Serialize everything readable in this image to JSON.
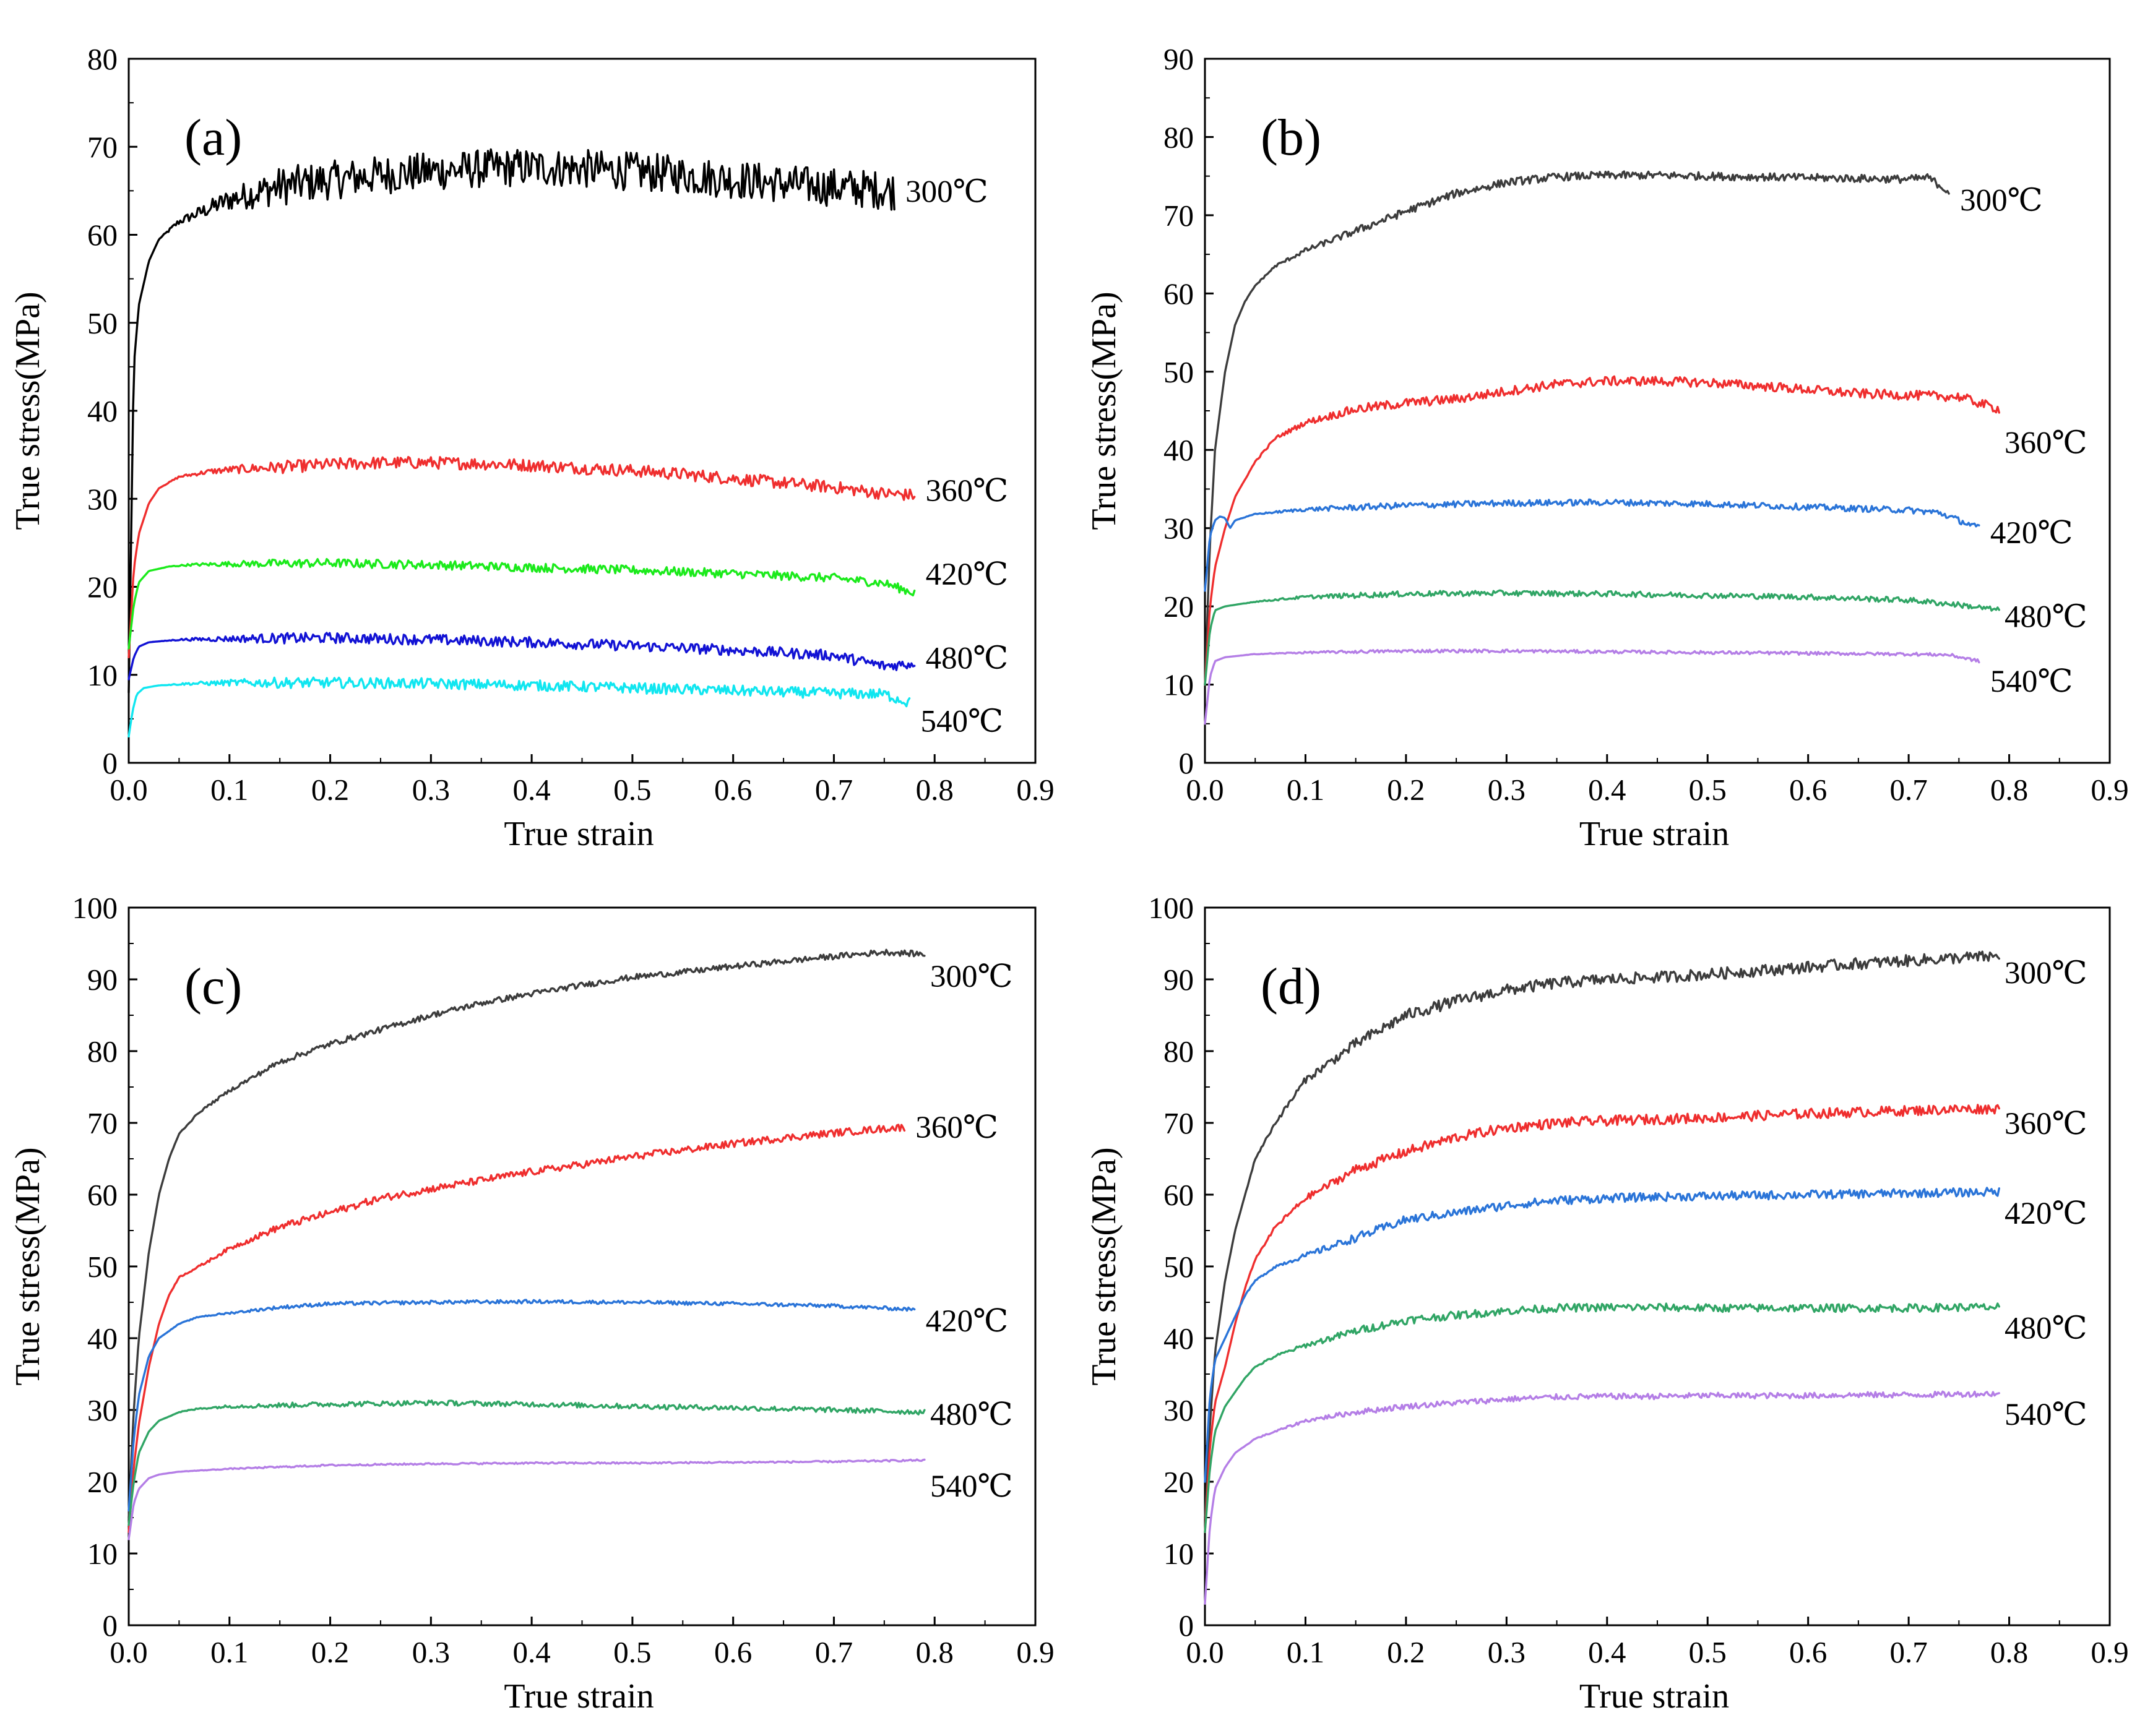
{
  "figure": {
    "colors": {
      "black": "#000000",
      "dark_gray": "#3c3c3c",
      "red": "#ef2e2e",
      "green": "#1bea1b",
      "blue": "#1212d4",
      "cyan": "#10e6f0",
      "mid_blue": "#2a74d8",
      "teal_green": "#30a565",
      "violet": "#b47ee6"
    }
  },
  "chart_data": [
    {
      "type": "line",
      "panel": "(a)",
      "xlabel": "True strain",
      "ylabel": "True stress(MPa)",
      "xlim": [
        0,
        0.9
      ],
      "ylim": [
        0,
        80
      ],
      "xticks": [
        "0.0",
        "0.1",
        "0.2",
        "0.3",
        "0.4",
        "0.5",
        "0.6",
        "0.7",
        "0.8",
        "0.9"
      ],
      "yticks": [
        "0",
        "10",
        "20",
        "30",
        "40",
        "50",
        "60",
        "70",
        "80"
      ],
      "series": [
        {
          "name": "300℃",
          "color": "#000000",
          "noise": 2.2,
          "label_y": 65,
          "x": [
            0,
            0.005,
            0.01,
            0.02,
            0.03,
            0.05,
            0.08,
            0.1,
            0.15,
            0.2,
            0.25,
            0.3,
            0.35,
            0.4,
            0.45,
            0.5,
            0.55,
            0.6,
            0.65,
            0.7,
            0.75,
            0.76
          ],
          "y": [
            8,
            45,
            52,
            57,
            59.5,
            61.5,
            63,
            64,
            65.5,
            66.2,
            66.8,
            67.2,
            67.5,
            67.7,
            67.5,
            67.2,
            66.8,
            66.3,
            65.8,
            65.4,
            65.1,
            65
          ]
        },
        {
          "name": "360℃",
          "color": "#ef2e2e",
          "noise": 0.7,
          "label_y": 31,
          "x": [
            0,
            0.005,
            0.01,
            0.02,
            0.03,
            0.05,
            0.08,
            0.1,
            0.15,
            0.2,
            0.25,
            0.3,
            0.35,
            0.4,
            0.45,
            0.5,
            0.55,
            0.6,
            0.65,
            0.7,
            0.75,
            0.78
          ],
          "y": [
            12,
            22,
            26,
            29.5,
            31.2,
            32.5,
            33.1,
            33.3,
            33.6,
            33.9,
            34.1,
            34.1,
            34,
            33.8,
            33.5,
            33.2,
            32.8,
            32.3,
            31.8,
            31.3,
            30.6,
            30.4
          ]
        },
        {
          "name": "420℃",
          "color": "#1bea1b",
          "noise": 0.5,
          "label_y": 21.5,
          "x": [
            0,
            0.005,
            0.01,
            0.02,
            0.04,
            0.06,
            0.1,
            0.2,
            0.3,
            0.4,
            0.5,
            0.6,
            0.7,
            0.75,
            0.78
          ],
          "y": [
            13,
            18,
            20.5,
            21.8,
            22.3,
            22.5,
            22.6,
            22.7,
            22.5,
            22.2,
            21.9,
            21.5,
            21,
            20.4,
            19.3
          ]
        },
        {
          "name": "480℃",
          "color": "#1212d4",
          "noise": 0.6,
          "label_y": 12,
          "x": [
            0,
            0.005,
            0.01,
            0.02,
            0.05,
            0.1,
            0.2,
            0.3,
            0.4,
            0.5,
            0.6,
            0.7,
            0.75,
            0.78
          ],
          "y": [
            9.5,
            12,
            13.2,
            13.7,
            14,
            14.1,
            14.2,
            14,
            13.7,
            13.3,
            12.8,
            12.2,
            11,
            11.3
          ]
        },
        {
          "name": "540℃",
          "color": "#10e6f0",
          "noise": 0.6,
          "label_y": 4.8,
          "x": [
            0,
            0.004,
            0.008,
            0.015,
            0.03,
            0.06,
            0.1,
            0.2,
            0.3,
            0.4,
            0.5,
            0.6,
            0.7,
            0.75,
            0.775
          ],
          "y": [
            3,
            6,
            7.8,
            8.5,
            8.8,
            9,
            9.1,
            9.1,
            9,
            8.8,
            8.5,
            8.2,
            7.9,
            7.8,
            6.8
          ]
        }
      ]
    },
    {
      "type": "line",
      "panel": "(b)",
      "xlabel": "True strain",
      "ylabel": "True stress(MPa)",
      "xlim": [
        0,
        0.9
      ],
      "ylim": [
        0,
        90
      ],
      "xticks": [
        "0.0",
        "0.1",
        "0.2",
        "0.3",
        "0.4",
        "0.5",
        "0.6",
        "0.7",
        "0.8",
        "0.9"
      ],
      "yticks": [
        "0",
        "10",
        "20",
        "30",
        "40",
        "50",
        "60",
        "70",
        "80",
        "90"
      ],
      "series": [
        {
          "name": "300℃",
          "color": "#3c3c3c",
          "noise": 0.5,
          "label_y": 72,
          "x": [
            0,
            0.005,
            0.01,
            0.02,
            0.03,
            0.04,
            0.05,
            0.07,
            0.1,
            0.15,
            0.2,
            0.25,
            0.3,
            0.35,
            0.4,
            0.45,
            0.5,
            0.55,
            0.6,
            0.65,
            0.7,
            0.72,
            0.74
          ],
          "y": [
            10,
            28,
            40,
            50,
            56,
            59,
            61,
            63.5,
            65.5,
            68,
            70.5,
            72.8,
            74.2,
            74.9,
            75.1,
            75.1,
            75,
            74.9,
            74.8,
            74.7,
            74.6,
            74.8,
            73
          ]
        },
        {
          "name": "360℃",
          "color": "#ef2e2e",
          "noise": 0.6,
          "label_y": 41,
          "x": [
            0,
            0.005,
            0.01,
            0.02,
            0.03,
            0.05,
            0.07,
            0.1,
            0.15,
            0.2,
            0.25,
            0.3,
            0.35,
            0.4,
            0.45,
            0.5,
            0.55,
            0.6,
            0.65,
            0.7,
            0.75,
            0.79
          ],
          "y": [
            10,
            20,
            25,
            30,
            34,
            38.5,
            41.5,
            43.5,
            45.2,
            46,
            46.5,
            47.5,
            48.4,
            48.8,
            48.8,
            48.6,
            48.2,
            47.7,
            47.2,
            47,
            46.8,
            45.2
          ]
        },
        {
          "name": "420℃",
          "color": "#2a74d8",
          "noise": 0.4,
          "label_y": 29.5,
          "x": [
            0,
            0.005,
            0.01,
            0.015,
            0.02,
            0.025,
            0.03,
            0.05,
            0.1,
            0.2,
            0.3,
            0.4,
            0.5,
            0.6,
            0.7,
            0.73,
            0.77
          ],
          "y": [
            22,
            29,
            31,
            31.5,
            31.3,
            30,
            31,
            31.8,
            32.4,
            32.9,
            33.2,
            33.3,
            33.1,
            32.7,
            32.3,
            32,
            30
          ]
        },
        {
          "name": "480℃",
          "color": "#30a565",
          "noise": 0.35,
          "label_y": 18.8,
          "x": [
            0,
            0.005,
            0.01,
            0.02,
            0.05,
            0.1,
            0.2,
            0.3,
            0.4,
            0.5,
            0.6,
            0.7,
            0.75,
            0.79
          ],
          "y": [
            10,
            17,
            19.5,
            20,
            20.6,
            21.2,
            21.6,
            21.7,
            21.6,
            21.4,
            21.2,
            20.8,
            20.2,
            19.5
          ]
        },
        {
          "name": "540℃",
          "color": "#b47ee6",
          "noise": 0.2,
          "label_y": 10.5,
          "x": [
            0,
            0.005,
            0.01,
            0.02,
            0.05,
            0.1,
            0.2,
            0.3,
            0.4,
            0.5,
            0.6,
            0.7,
            0.74,
            0.77
          ],
          "y": [
            5,
            11,
            13,
            13.5,
            13.9,
            14.1,
            14.3,
            14.3,
            14.2,
            14.1,
            14,
            13.9,
            13.8,
            13
          ]
        }
      ]
    },
    {
      "type": "line",
      "panel": "(c)",
      "xlabel": "True strain",
      "ylabel": "True stress(MPa)",
      "xlim": [
        0,
        0.9
      ],
      "ylim": [
        0,
        100
      ],
      "xticks": [
        "0.0",
        "0.1",
        "0.2",
        "0.3",
        "0.4",
        "0.5",
        "0.6",
        "0.7",
        "0.8",
        "0.9"
      ],
      "yticks": [
        "0",
        "10",
        "20",
        "30",
        "40",
        "50",
        "60",
        "70",
        "80",
        "90",
        "100"
      ],
      "series": [
        {
          "name": "300℃",
          "color": "#3c3c3c",
          "noise": 0.4,
          "label_y": 90.5,
          "x": [
            0,
            0.005,
            0.01,
            0.02,
            0.03,
            0.04,
            0.05,
            0.07,
            0.1,
            0.15,
            0.2,
            0.25,
            0.3,
            0.35,
            0.4,
            0.45,
            0.5,
            0.55,
            0.6,
            0.65,
            0.7,
            0.75,
            0.79
          ],
          "y": [
            15,
            30,
            40,
            52,
            60,
            65,
            68.5,
            71.5,
            74.5,
            78.5,
            81,
            83,
            85,
            86.7,
            88,
            89.2,
            90.3,
            91,
            91.8,
            92.5,
            93.2,
            93.8,
            93.5
          ]
        },
        {
          "name": "360℃",
          "color": "#ef2e2e",
          "noise": 0.5,
          "label_y": 69.5,
          "x": [
            0,
            0.005,
            0.01,
            0.02,
            0.03,
            0.04,
            0.05,
            0.07,
            0.1,
            0.15,
            0.2,
            0.25,
            0.3,
            0.35,
            0.4,
            0.45,
            0.5,
            0.55,
            0.6,
            0.65,
            0.7,
            0.75,
            0.77
          ],
          "y": [
            13,
            22,
            28,
            36,
            42,
            46,
            48.5,
            50,
            52.5,
            55.5,
            57.5,
            59.5,
            60.8,
            62,
            63.2,
            64.2,
            65.3,
            66.2,
            67.1,
            67.9,
            68.6,
            69.2,
            69.4
          ]
        },
        {
          "name": "420℃",
          "color": "#2a74d8",
          "noise": 0.25,
          "label_y": 42.5,
          "x": [
            0,
            0.005,
            0.01,
            0.02,
            0.03,
            0.05,
            0.07,
            0.1,
            0.15,
            0.2,
            0.3,
            0.4,
            0.5,
            0.6,
            0.7,
            0.78
          ],
          "y": [
            16,
            26,
            32,
            37.5,
            40,
            42,
            43,
            43.5,
            44.3,
            44.8,
            45,
            45.1,
            45,
            44.8,
            44.5,
            44
          ]
        },
        {
          "name": "480℃",
          "color": "#30a565",
          "noise": 0.35,
          "label_y": 29.5,
          "x": [
            0,
            0.005,
            0.01,
            0.02,
            0.03,
            0.05,
            0.07,
            0.1,
            0.2,
            0.3,
            0.4,
            0.5,
            0.6,
            0.7,
            0.79
          ],
          "y": [
            14,
            20,
            24,
            27,
            28.5,
            29.7,
            30.2,
            30.5,
            30.8,
            31,
            30.8,
            30.5,
            30.3,
            30,
            29.7
          ]
        },
        {
          "name": "540℃",
          "color": "#b47ee6",
          "noise": 0.12,
          "label_y": 19.5,
          "x": [
            0,
            0.005,
            0.01,
            0.02,
            0.03,
            0.05,
            0.1,
            0.2,
            0.3,
            0.4,
            0.5,
            0.6,
            0.7,
            0.79
          ],
          "y": [
            12,
            17,
            19,
            20.5,
            21,
            21.4,
            21.8,
            22.3,
            22.5,
            22.6,
            22.6,
            22.7,
            22.8,
            23
          ]
        }
      ]
    },
    {
      "type": "line",
      "panel": "(d)",
      "xlabel": "True strain",
      "ylabel": "True stress(MPa)",
      "xlim": [
        0,
        0.9
      ],
      "ylim": [
        0,
        100
      ],
      "xticks": [
        "0.0",
        "0.1",
        "0.2",
        "0.3",
        "0.4",
        "0.5",
        "0.6",
        "0.7",
        "0.8",
        "0.9"
      ],
      "yticks": [
        "0",
        "10",
        "20",
        "30",
        "40",
        "50",
        "60",
        "70",
        "80",
        "90",
        "100"
      ],
      "series": [
        {
          "name": "300℃",
          "color": "#3c3c3c",
          "noise": 0.8,
          "label_y": 91,
          "x": [
            0,
            0.005,
            0.01,
            0.02,
            0.03,
            0.04,
            0.05,
            0.07,
            0.1,
            0.15,
            0.2,
            0.25,
            0.3,
            0.35,
            0.4,
            0.45,
            0.5,
            0.55,
            0.6,
            0.65,
            0.7,
            0.75,
            0.79
          ],
          "y": [
            15,
            28,
            38,
            48,
            55,
            60,
            65,
            70,
            76,
            81,
            85,
            87,
            88.5,
            89.5,
            90,
            90.3,
            90.7,
            91.2,
            91.7,
            92.2,
            92.6,
            93,
            93.2
          ]
        },
        {
          "name": "360℃",
          "color": "#ef2e2e",
          "noise": 0.7,
          "label_y": 70,
          "x": [
            0,
            0.005,
            0.01,
            0.02,
            0.03,
            0.04,
            0.05,
            0.07,
            0.1,
            0.15,
            0.2,
            0.25,
            0.3,
            0.35,
            0.4,
            0.45,
            0.5,
            0.55,
            0.6,
            0.65,
            0.7,
            0.75,
            0.79
          ],
          "y": [
            13,
            25,
            31,
            36,
            42,
            47,
            51,
            55.5,
            59.5,
            63.5,
            66,
            68,
            69.3,
            70,
            70.3,
            70.5,
            70.7,
            71,
            71.3,
            71.5,
            71.7,
            71.9,
            72
          ]
        },
        {
          "name": "420℃",
          "color": "#2a74d8",
          "noise": 0.6,
          "label_y": 57.5,
          "x": [
            0,
            0.005,
            0.01,
            0.02,
            0.03,
            0.04,
            0.05,
            0.07,
            0.1,
            0.15,
            0.2,
            0.25,
            0.3,
            0.35,
            0.4,
            0.45,
            0.5,
            0.55,
            0.6,
            0.65,
            0.7,
            0.75,
            0.79
          ],
          "y": [
            20,
            32,
            37,
            40,
            43,
            46,
            48,
            50,
            51.5,
            54,
            56.5,
            57.5,
            58.5,
            59.2,
            59.5,
            59.7,
            59.8,
            59.9,
            60,
            60.1,
            60.2,
            60.3,
            60.4
          ]
        },
        {
          "name": "480℃",
          "color": "#30a565",
          "noise": 0.55,
          "label_y": 41.5,
          "x": [
            0,
            0.005,
            0.01,
            0.02,
            0.03,
            0.04,
            0.05,
            0.07,
            0.1,
            0.15,
            0.2,
            0.25,
            0.3,
            0.35,
            0.4,
            0.45,
            0.5,
            0.55,
            0.6,
            0.65,
            0.7,
            0.75,
            0.79
          ],
          "y": [
            13,
            22,
            27,
            30.5,
            32.5,
            34.5,
            36,
            37.5,
            39,
            41,
            42.5,
            43.2,
            43.8,
            44.2,
            44.3,
            44.3,
            44.2,
            44.2,
            44.2,
            44.2,
            44.2,
            44.3,
            44.3
          ]
        },
        {
          "name": "540℃",
          "color": "#b47ee6",
          "noise": 0.4,
          "label_y": 29.5,
          "x": [
            0,
            0.005,
            0.01,
            0.02,
            0.03,
            0.04,
            0.05,
            0.07,
            0.1,
            0.15,
            0.2,
            0.25,
            0.3,
            0.35,
            0.4,
            0.45,
            0.5,
            0.55,
            0.6,
            0.65,
            0.7,
            0.75,
            0.79
          ],
          "y": [
            3,
            14,
            19,
            22,
            24,
            25,
            26,
            27,
            28.5,
            29.7,
            30.5,
            31,
            31.5,
            31.8,
            31.9,
            31.9,
            32,
            32,
            32,
            32.1,
            32.1,
            32.2,
            32.3
          ]
        }
      ]
    }
  ]
}
